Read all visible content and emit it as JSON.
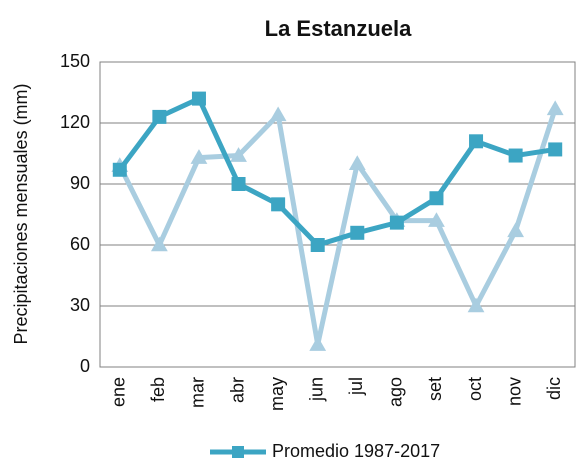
{
  "chart_data": {
    "type": "line",
    "title": "La Estanzuela",
    "y_label": "Precipitaciones mensuales (mm)",
    "categories": [
      "ene",
      "feb",
      "mar",
      "abr",
      "may",
      "jun",
      "jul",
      "ago",
      "set",
      "oct",
      "nov",
      "dic"
    ],
    "series": [
      {
        "name": "Promedio 1987-2017",
        "color": "#3ca5c3",
        "marker": "square",
        "values": [
          97,
          123,
          132,
          90,
          80,
          60,
          66,
          71,
          83,
          111,
          104,
          107
        ]
      },
      {
        "color": "#a9cde0",
        "marker": "triangle",
        "values": [
          99,
          60,
          103,
          104,
          124,
          11,
          100,
          72,
          72,
          30,
          67,
          127
        ]
      }
    ],
    "ylim": [
      0,
      150
    ],
    "yticks": [
      0,
      30,
      60,
      90,
      120,
      150
    ],
    "grid": true,
    "legend": "bottom"
  }
}
